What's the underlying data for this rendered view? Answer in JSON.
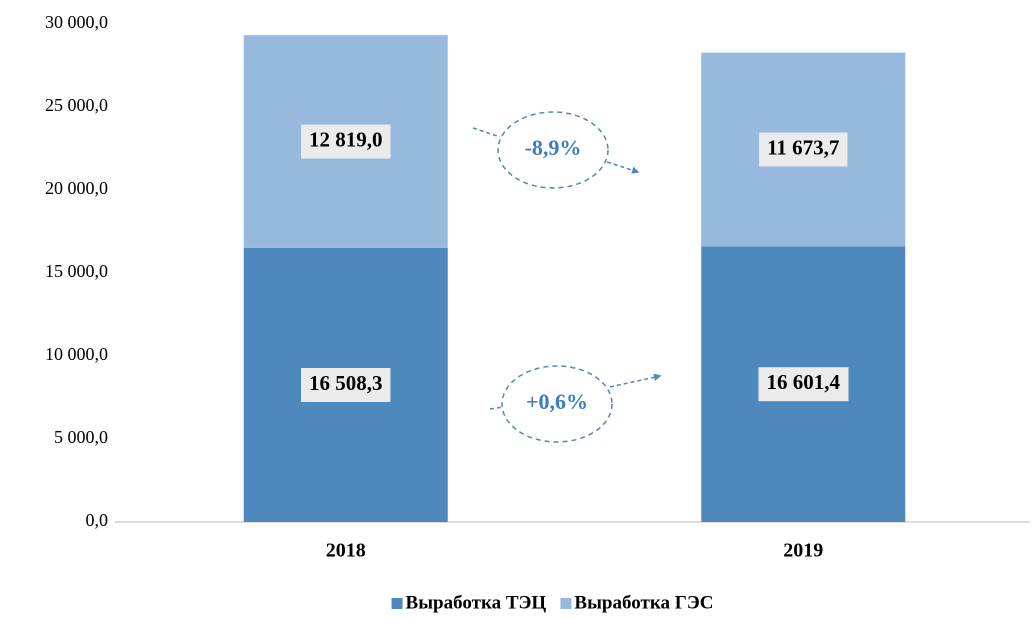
{
  "chart_data": {
    "type": "bar",
    "stacked": true,
    "categories": [
      "2018",
      "2019"
    ],
    "series": [
      {
        "name": "Выработка ТЭЦ",
        "color": "#4f88bd",
        "values": [
          16508.3,
          16601.4
        ],
        "value_labels": [
          "16 508,3",
          "16 601,4"
        ]
      },
      {
        "name": "Выработка ГЭС",
        "color": "#98b9de",
        "values": [
          12819.0,
          11673.7
        ],
        "value_labels": [
          "12 819,0",
          "11 673,7"
        ]
      }
    ],
    "ylim": [
      0,
      30000
    ],
    "yticks": [
      {
        "value": 0,
        "label": "0,0"
      },
      {
        "value": 5000,
        "label": "5 000,0"
      },
      {
        "value": 10000,
        "label": "10 000,0"
      },
      {
        "value": 15000,
        "label": "15 000,0"
      },
      {
        "value": 20000,
        "label": "20 000,0"
      },
      {
        "value": 25000,
        "label": "25 000,0"
      },
      {
        "value": 30000,
        "label": "30 000,0"
      }
    ],
    "annotations": [
      "-8,9%",
      "+0,6%"
    ],
    "legend": "bottom"
  }
}
